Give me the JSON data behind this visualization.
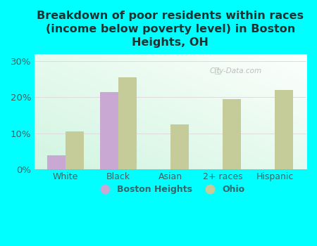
{
  "categories": [
    "White",
    "Black",
    "Asian",
    "2+ races",
    "Hispanic"
  ],
  "boston_heights": [
    4.0,
    21.5,
    0,
    0,
    0
  ],
  "ohio": [
    10.5,
    25.5,
    12.5,
    19.5,
    22.0
  ],
  "boston_color": "#c9a8d4",
  "ohio_color": "#c5cc9a",
  "background_color": "#00ffff",
  "plot_bg_topleft": "#ddf5e8",
  "plot_bg_bottomright": "#f5fcf8",
  "title": "Breakdown of poor residents within races\n(income below poverty level) in Boston\nHeights, OH",
  "title_fontsize": 11.5,
  "title_color": "#1a3333",
  "tick_color": "#336666",
  "ylabel_ticks": [
    "0%",
    "10%",
    "20%",
    "30%"
  ],
  "ytick_vals": [
    0,
    10,
    20,
    30
  ],
  "ylim": [
    0,
    32
  ],
  "legend_boston": "Boston Heights",
  "legend_ohio": "Ohio",
  "watermark": "City-Data.com",
  "bar_width": 0.35,
  "grid_color": "#dddddd"
}
